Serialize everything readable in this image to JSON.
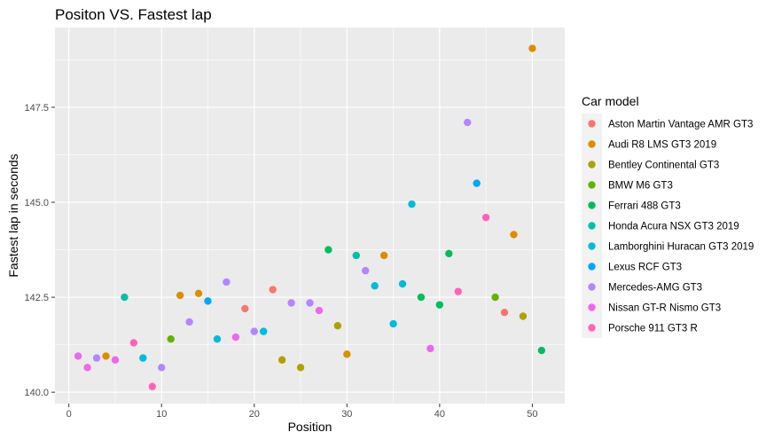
{
  "chart_data": {
    "type": "scatter",
    "title": "Positon VS. Fastest lap",
    "xlabel": "Position",
    "ylabel": "Fastest lap in seconds",
    "xlim": [
      -1.5,
      53.5
    ],
    "ylim": [
      139.7,
      149.6
    ],
    "x_ticks": [
      0,
      10,
      20,
      30,
      40,
      50
    ],
    "y_ticks": [
      140.0,
      142.5,
      145.0,
      147.5
    ],
    "y_tick_labels": [
      "140.0",
      "142.5",
      "145.0",
      "147.5"
    ],
    "grid": true,
    "legend_title": "Car model",
    "legend_position": "right",
    "series": [
      {
        "name": "Aston Martin Vantage AMR GT3",
        "color": "#F8766D",
        "points": [
          [
            22,
            142.7
          ],
          [
            19,
            142.2
          ],
          [
            47,
            142.1
          ]
        ]
      },
      {
        "name": "Audi R8 LMS GT3 2019",
        "color": "#DB8E00",
        "points": [
          [
            4,
            140.95
          ],
          [
            12,
            142.55
          ],
          [
            14,
            142.6
          ],
          [
            30,
            141.0
          ],
          [
            34,
            143.6
          ],
          [
            48,
            144.15
          ],
          [
            50,
            149.05
          ]
        ]
      },
      {
        "name": "Bentley Continental GT3",
        "color": "#AEA200",
        "points": [
          [
            23,
            140.85
          ],
          [
            25,
            140.65
          ],
          [
            29,
            141.75
          ],
          [
            49,
            142.0
          ]
        ]
      },
      {
        "name": "BMW M6 GT3",
        "color": "#64B200",
        "points": [
          [
            11,
            141.4
          ],
          [
            46,
            142.5
          ]
        ]
      },
      {
        "name": "Ferrari 488 GT3",
        "color": "#00BD5C",
        "points": [
          [
            28,
            143.75
          ],
          [
            38,
            142.5
          ],
          [
            40,
            142.3
          ],
          [
            41,
            143.65
          ],
          [
            51,
            141.1
          ]
        ]
      },
      {
        "name": "Honda Acura NSX GT3 2019",
        "color": "#00C1A7",
        "points": [
          [
            6,
            142.5
          ],
          [
            31,
            143.6
          ]
        ]
      },
      {
        "name": "Lamborghini Huracan GT3 2019",
        "color": "#00BADE",
        "points": [
          [
            8,
            140.9
          ],
          [
            16,
            141.4
          ],
          [
            21,
            141.6
          ],
          [
            33,
            142.8
          ],
          [
            35,
            141.8
          ],
          [
            36,
            142.85
          ],
          [
            37,
            144.95
          ]
        ]
      },
      {
        "name": "Lexus RCF GT3",
        "color": "#00A6FF",
        "points": [
          [
            15,
            142.4
          ],
          [
            44,
            145.5
          ]
        ]
      },
      {
        "name": "Mercedes-AMG GT3",
        "color": "#B385FF",
        "points": [
          [
            3,
            140.9
          ],
          [
            10,
            140.65
          ],
          [
            13,
            141.85
          ],
          [
            17,
            142.9
          ],
          [
            20,
            141.6
          ],
          [
            24,
            142.35
          ],
          [
            26,
            142.35
          ],
          [
            32,
            143.2
          ],
          [
            43,
            147.1
          ]
        ]
      },
      {
        "name": "Nissan GT-R Nismo GT3",
        "color": "#EF67EB",
        "points": [
          [
            1,
            140.95
          ],
          [
            2,
            140.65
          ],
          [
            5,
            140.85
          ],
          [
            18,
            141.45
          ],
          [
            27,
            142.15
          ],
          [
            39,
            141.15
          ]
        ]
      },
      {
        "name": "Porsche 911 GT3 R",
        "color": "#FF63B6",
        "points": [
          [
            7,
            141.3
          ],
          [
            9,
            140.15
          ],
          [
            42,
            142.65
          ],
          [
            45,
            144.6
          ]
        ]
      }
    ]
  }
}
